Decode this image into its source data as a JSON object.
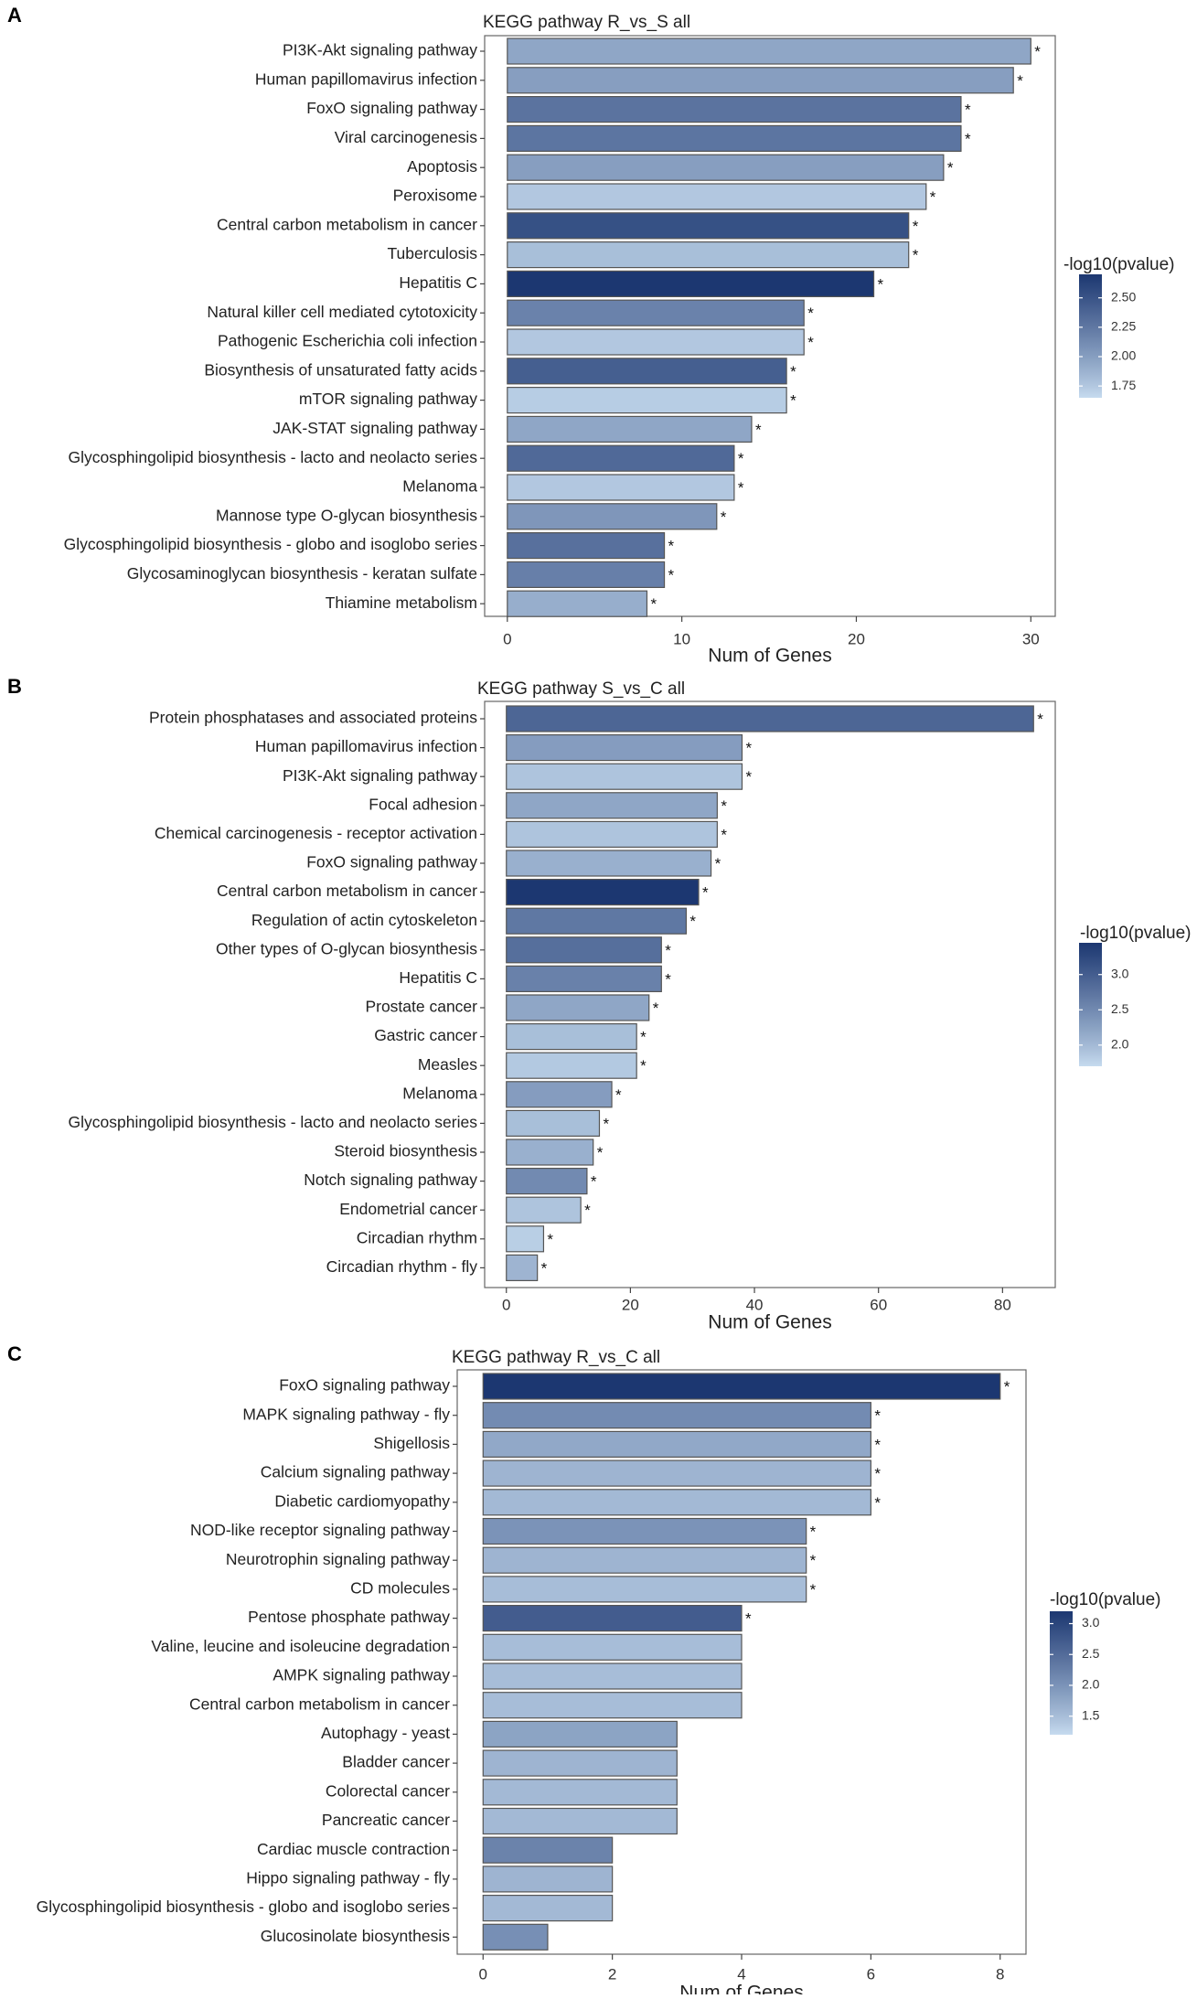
{
  "figure": {
    "star_symbol": "*",
    "legend_title": "-log10(pvalue)",
    "color_low": "#c6dbef",
    "color_high": "#1c3771"
  },
  "chart_data": [
    {
      "panel_label": "A",
      "type": "bar",
      "orientation": "horizontal",
      "title": "KEGG pathway R_vs_S all",
      "xlabel": "Num of Genes",
      "ylabel": "",
      "xlim": [
        -1.3,
        31.4
      ],
      "xticks": [
        0,
        10,
        20,
        30
      ],
      "categories": [
        "PI3K-Akt signaling pathway",
        "Human papillomavirus infection",
        "FoxO signaling pathway",
        "Viral carcinogenesis",
        "Apoptosis",
        "Peroxisome",
        "Central carbon metabolism in cancer",
        "Tuberculosis",
        "Hepatitis C",
        "Natural killer cell mediated cytotoxicity",
        "Pathogenic Escherichia coli infection",
        "Biosynthesis of unsaturated fatty acids",
        "mTOR signaling pathway",
        "JAK-STAT signaling pathway",
        "Glycosphingolipid biosynthesis - lacto and neolacto series",
        "Melanoma",
        "Mannose type O-glycan biosynthesis",
        "Glycosphingolipid biosynthesis - globo and isoglobo series",
        "Glycosaminoglycan biosynthesis - keratan sulfate",
        "Thiamine metabolism"
      ],
      "values": [
        30,
        29,
        26,
        26,
        25,
        24,
        23,
        23,
        21,
        17,
        17,
        16,
        16,
        14,
        13,
        13,
        12,
        9,
        9,
        8
      ],
      "neglog10_pvalue": [
        1.95,
        2.0,
        2.28,
        2.27,
        2.0,
        1.75,
        2.52,
        1.8,
        2.7,
        2.18,
        1.75,
        2.42,
        1.72,
        1.95,
        2.35,
        1.75,
        2.05,
        2.3,
        2.2,
        1.9
      ],
      "significant": [
        true,
        true,
        true,
        true,
        true,
        true,
        true,
        true,
        true,
        true,
        true,
        true,
        true,
        true,
        true,
        true,
        true,
        true,
        true,
        true
      ],
      "legend": {
        "title": "-log10(pvalue)",
        "min": 1.65,
        "max": 2.7,
        "ticks": [
          "2.50",
          "2.25",
          "2.00",
          "1.75"
        ],
        "tick_values": [
          2.5,
          2.25,
          2.0,
          1.75
        ]
      }
    },
    {
      "panel_label": "B",
      "type": "bar",
      "orientation": "horizontal",
      "title": "KEGG pathway S_vs_C all",
      "xlabel": "Num of Genes",
      "ylabel": "",
      "xlim": [
        -3.5,
        88.5
      ],
      "xticks": [
        0,
        20,
        40,
        60,
        80
      ],
      "categories": [
        "Protein phosphatases and associated proteins",
        "Human papillomavirus infection",
        "PI3K-Akt signaling pathway",
        "Focal adhesion",
        "Chemical carcinogenesis - receptor activation",
        "FoxO signaling pathway",
        "Central carbon metabolism in cancer",
        "Regulation of actin cytoskeleton",
        "Other types of O-glycan biosynthesis",
        "Hepatitis C",
        "Prostate cancer",
        "Gastric cancer",
        "Measles",
        "Melanoma",
        "Glycosphingolipid biosynthesis - lacto and neolacto series",
        "Steroid biosynthesis",
        "Notch signaling pathway",
        "Endometrial cancer",
        "Circadian rhythm",
        "Circadian rhythm - fly"
      ],
      "values": [
        85,
        38,
        38,
        34,
        34,
        33,
        31,
        29,
        25,
        25,
        23,
        21,
        21,
        17,
        15,
        14,
        13,
        12,
        6,
        5
      ],
      "neglog10_pvalue": [
        2.9,
        2.3,
        1.9,
        2.2,
        1.9,
        2.1,
        3.45,
        2.7,
        2.8,
        2.6,
        2.2,
        1.95,
        1.85,
        2.3,
        1.95,
        2.1,
        2.5,
        1.9,
        1.8,
        2.05
      ],
      "significant": [
        true,
        true,
        true,
        true,
        true,
        true,
        true,
        true,
        true,
        true,
        true,
        true,
        true,
        true,
        true,
        true,
        true,
        true,
        true,
        true
      ],
      "legend": {
        "title": "-log10(pvalue)",
        "min": 1.7,
        "max": 3.45,
        "ticks": [
          "3.0",
          "2.5",
          "2.0"
        ],
        "tick_values": [
          3.0,
          2.5,
          2.0
        ]
      }
    },
    {
      "panel_label": "C",
      "type": "bar",
      "orientation": "horizontal",
      "title": "KEGG pathway R_vs_C all",
      "xlabel": "Num of Genes",
      "ylabel": "",
      "xlim": [
        -0.4,
        8.4
      ],
      "xticks": [
        0,
        2,
        4,
        6,
        8
      ],
      "categories": [
        "FoxO signaling pathway",
        "MAPK signaling pathway - fly",
        "Shigellosis",
        "Calcium signaling pathway",
        "Diabetic cardiomyopathy",
        "NOD-like receptor signaling pathway",
        "Neurotrophin signaling pathway",
        "CD molecules",
        "Pentose phosphate pathway",
        "Valine, leucine and isoleucine degradation",
        "AMPK signaling pathway",
        "Central carbon metabolism in cancer",
        "Autophagy - yeast",
        "Bladder cancer",
        "Colorectal cancer",
        "Pancreatic cancer",
        "Cardiac muscle contraction",
        "Hippo signaling pathway - fly",
        "Glycosphingolipid biosynthesis - globo and isoglobo series",
        "Glucosinolate biosynthesis"
      ],
      "values": [
        8,
        6,
        6,
        6,
        6,
        5,
        5,
        5,
        4,
        4,
        4,
        4,
        3,
        3,
        3,
        3,
        2,
        2,
        2,
        1
      ],
      "neglog10_pvalue": [
        3.2,
        2.1,
        1.75,
        1.6,
        1.55,
        2.0,
        1.6,
        1.5,
        2.7,
        1.5,
        1.5,
        1.5,
        1.8,
        1.6,
        1.55,
        1.55,
        2.2,
        1.6,
        1.55,
        2.05
      ],
      "significant": [
        true,
        true,
        true,
        true,
        true,
        true,
        true,
        true,
        true,
        false,
        false,
        false,
        false,
        false,
        false,
        false,
        false,
        false,
        false,
        false
      ],
      "legend": {
        "title": "-log10(pvalue)",
        "min": 1.2,
        "max": 3.2,
        "ticks": [
          "3.0",
          "2.5",
          "2.0",
          "1.5"
        ],
        "tick_values": [
          3.0,
          2.5,
          2.0,
          1.5
        ]
      }
    }
  ]
}
